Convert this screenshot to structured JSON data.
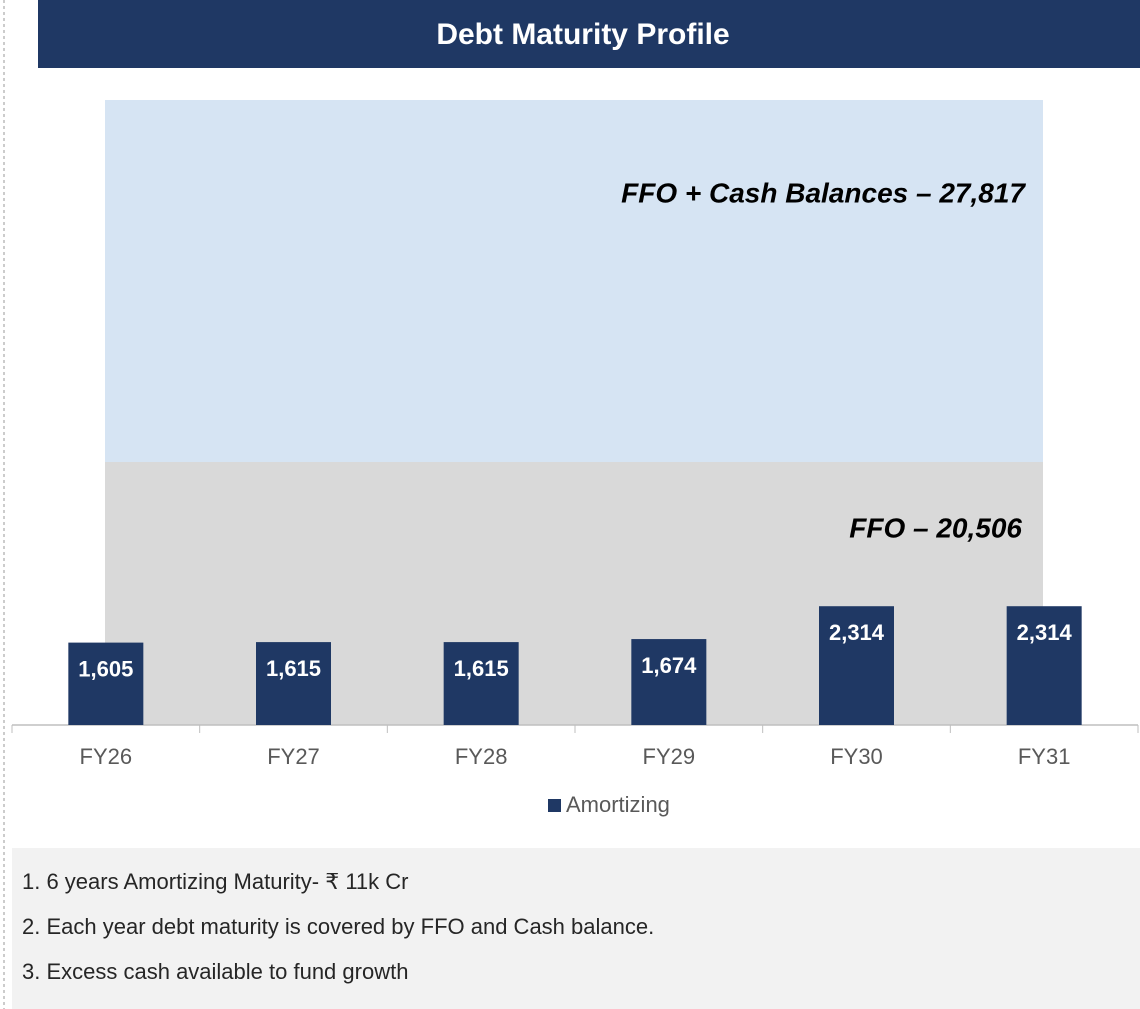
{
  "chart_data": {
    "type": "bar",
    "title": "Debt Maturity Profile",
    "categories": [
      "FY26",
      "FY27",
      "FY28",
      "FY29",
      "FY30",
      "FY31"
    ],
    "series": [
      {
        "name": "Amortizing",
        "color": "#1f3864",
        "values": [
          1605,
          1615,
          1615,
          1674,
          2314,
          2314
        ],
        "value_labels": [
          "1,605",
          "1,615",
          "1,615",
          "1,674",
          "2,314",
          "2,314"
        ]
      }
    ],
    "ylim": [
      0,
      12000
    ],
    "annotations": [
      "FFO + Cash Balances – 27,817",
      "FFO – 20,506"
    ]
  },
  "notes": [
    "1. 6 years Amortizing Maturity- ₹ 11k Cr",
    "2. Each year debt maturity is covered by FFO and Cash balance.",
    "3. Excess cash available to fund growth"
  ]
}
